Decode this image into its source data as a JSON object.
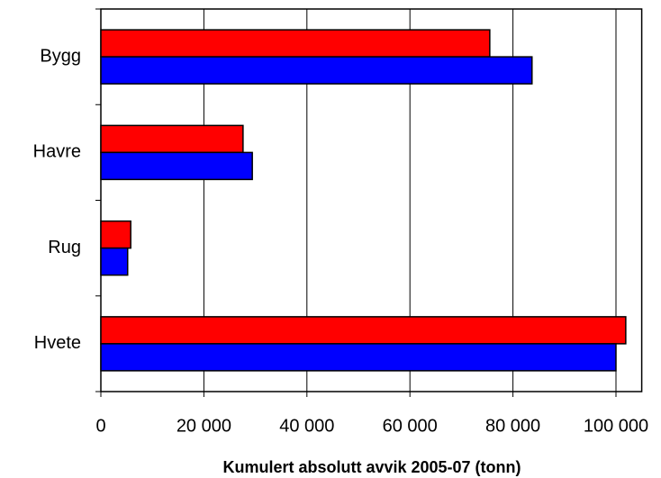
{
  "chart_data": {
    "type": "barh",
    "x_label": "Kumulert absolutt avvik 2005-07 (tonn)",
    "categories": [
      "Bygg",
      "Havre",
      "Rug",
      "Hvete"
    ],
    "series": [
      {
        "color": "#ff0000",
        "values": [
          75500,
          27600,
          5800,
          101900
        ]
      },
      {
        "color": "#0000ff",
        "values": [
          83700,
          29400,
          5200,
          100000
        ]
      }
    ],
    "xlim": [
      0,
      105000
    ],
    "xticks": [
      0,
      {
        "value": 20000,
        "label": "20 000"
      },
      {
        "value": 40000,
        "label": "40 000"
      },
      {
        "value": 60000,
        "label": "60 000"
      },
      {
        "value": 80000,
        "label": "80 000"
      },
      {
        "value": 100000,
        "label": "100 000"
      }
    ],
    "grid": true
  }
}
